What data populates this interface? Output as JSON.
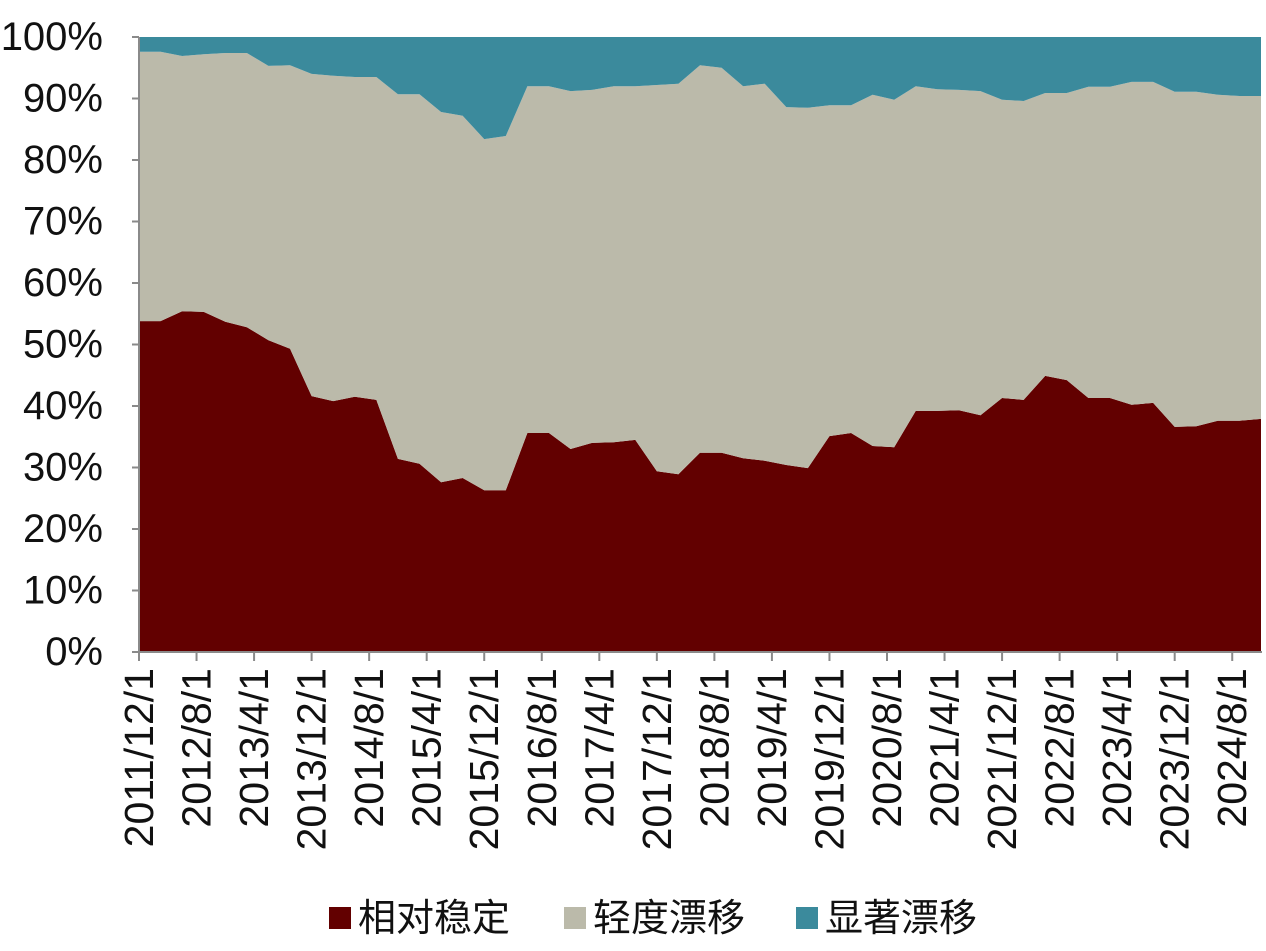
{
  "chart_data": {
    "type": "area",
    "stacked": true,
    "percent_stacked": true,
    "x": [
      "2011/12/1",
      "2012/3/1",
      "2012/6/1",
      "2012/9/1",
      "2012/12/1",
      "2013/3/1",
      "2013/6/1",
      "2013/9/1",
      "2013/12/1",
      "2014/3/1",
      "2014/6/1",
      "2014/9/1",
      "2014/12/1",
      "2015/3/1",
      "2015/6/1",
      "2015/9/1",
      "2015/12/1",
      "2016/3/1",
      "2016/6/1",
      "2016/9/1",
      "2016/12/1",
      "2017/3/1",
      "2017/6/1",
      "2017/9/1",
      "2017/12/1",
      "2018/3/1",
      "2018/6/1",
      "2018/9/1",
      "2018/12/1",
      "2019/3/1",
      "2019/6/1",
      "2019/9/1",
      "2019/12/1",
      "2020/3/1",
      "2020/6/1",
      "2020/9/1",
      "2020/12/1",
      "2021/3/1",
      "2021/6/1",
      "2021/9/1",
      "2021/12/1",
      "2022/3/1",
      "2022/6/1",
      "2022/9/1",
      "2022/12/1",
      "2023/3/1",
      "2023/6/1",
      "2023/9/1",
      "2023/12/1",
      "2024/3/1",
      "2024/6/1",
      "2024/9/1",
      "2024/12/1"
    ],
    "series": [
      {
        "name": "相对稳定",
        "color": "#620000",
        "values": [
          53.8,
          53.8,
          55.4,
          55.3,
          53.7,
          52.8,
          50.7,
          49.3,
          41.6,
          40.8,
          41.5,
          41.0,
          31.4,
          30.6,
          27.6,
          28.3,
          26.3,
          26.3,
          35.6,
          35.6,
          33.0,
          34.0,
          34.1,
          34.5,
          29.4,
          28.9,
          32.4,
          32.4,
          31.5,
          31.1,
          30.4,
          29.9,
          35.1,
          35.6,
          33.5,
          33.3,
          39.2,
          39.2,
          39.3,
          38.5,
          41.3,
          41.0,
          44.9,
          44.2,
          41.3,
          41.3,
          40.2,
          40.5,
          36.6,
          36.7,
          37.6,
          37.6,
          37.9
        ]
      },
      {
        "name": "轻度漂移",
        "color": "#BBBAAA",
        "values": [
          43.8,
          43.8,
          41.5,
          41.9,
          43.7,
          44.6,
          44.6,
          46.1,
          52.4,
          52.9,
          52.0,
          52.5,
          59.3,
          60.1,
          60.2,
          58.9,
          57.1,
          57.6,
          56.4,
          56.4,
          58.2,
          57.4,
          57.9,
          57.5,
          62.8,
          63.5,
          63.0,
          62.6,
          60.5,
          61.3,
          58.2,
          58.6,
          53.8,
          53.3,
          57.1,
          56.5,
          52.8,
          52.3,
          52.1,
          52.7,
          48.5,
          48.6,
          46.0,
          46.7,
          50.6,
          50.6,
          52.5,
          52.2,
          54.5,
          54.4,
          53.0,
          52.8,
          52.5
        ]
      },
      {
        "name": "显著漂移",
        "color": "#3B8A9C",
        "values": [
          2.4,
          2.4,
          3.1,
          2.8,
          2.6,
          2.6,
          4.7,
          4.6,
          6.0,
          6.3,
          6.5,
          6.5,
          9.3,
          9.3,
          12.2,
          12.8,
          16.6,
          16.1,
          8.0,
          8.0,
          8.8,
          8.6,
          8.0,
          8.0,
          7.8,
          7.6,
          4.6,
          5.0,
          8.0,
          7.6,
          11.4,
          11.5,
          11.1,
          11.1,
          9.4,
          10.2,
          8.0,
          8.5,
          8.6,
          8.8,
          10.2,
          10.4,
          9.1,
          9.1,
          8.1,
          8.1,
          7.3,
          7.3,
          8.9,
          8.9,
          9.4,
          9.6,
          9.6
        ]
      }
    ],
    "xlim": [
      "2011/12/1",
      "2024/12/1"
    ],
    "ylim": [
      0,
      100
    ],
    "y_ticks": [
      0,
      10,
      20,
      30,
      40,
      50,
      60,
      70,
      80,
      90,
      100
    ],
    "y_tick_labels": [
      "0%",
      "10%",
      "20%",
      "30%",
      "40%",
      "50%",
      "60%",
      "70%",
      "80%",
      "90%",
      "100%"
    ],
    "x_tick_labels": [
      "2011/12/1",
      "2012/8/1",
      "2013/4/1",
      "2013/12/1",
      "2014/8/1",
      "2015/4/1",
      "2015/12/1",
      "2016/8/1",
      "2017/4/1",
      "2017/12/1",
      "2018/8/1",
      "2019/4/1",
      "2019/12/1",
      "2020/8/1",
      "2021/4/1",
      "2021/12/1",
      "2022/8/1",
      "2023/4/1",
      "2023/12/1",
      "2024/8/1"
    ],
    "grid": false,
    "legend_position": "bottom"
  }
}
